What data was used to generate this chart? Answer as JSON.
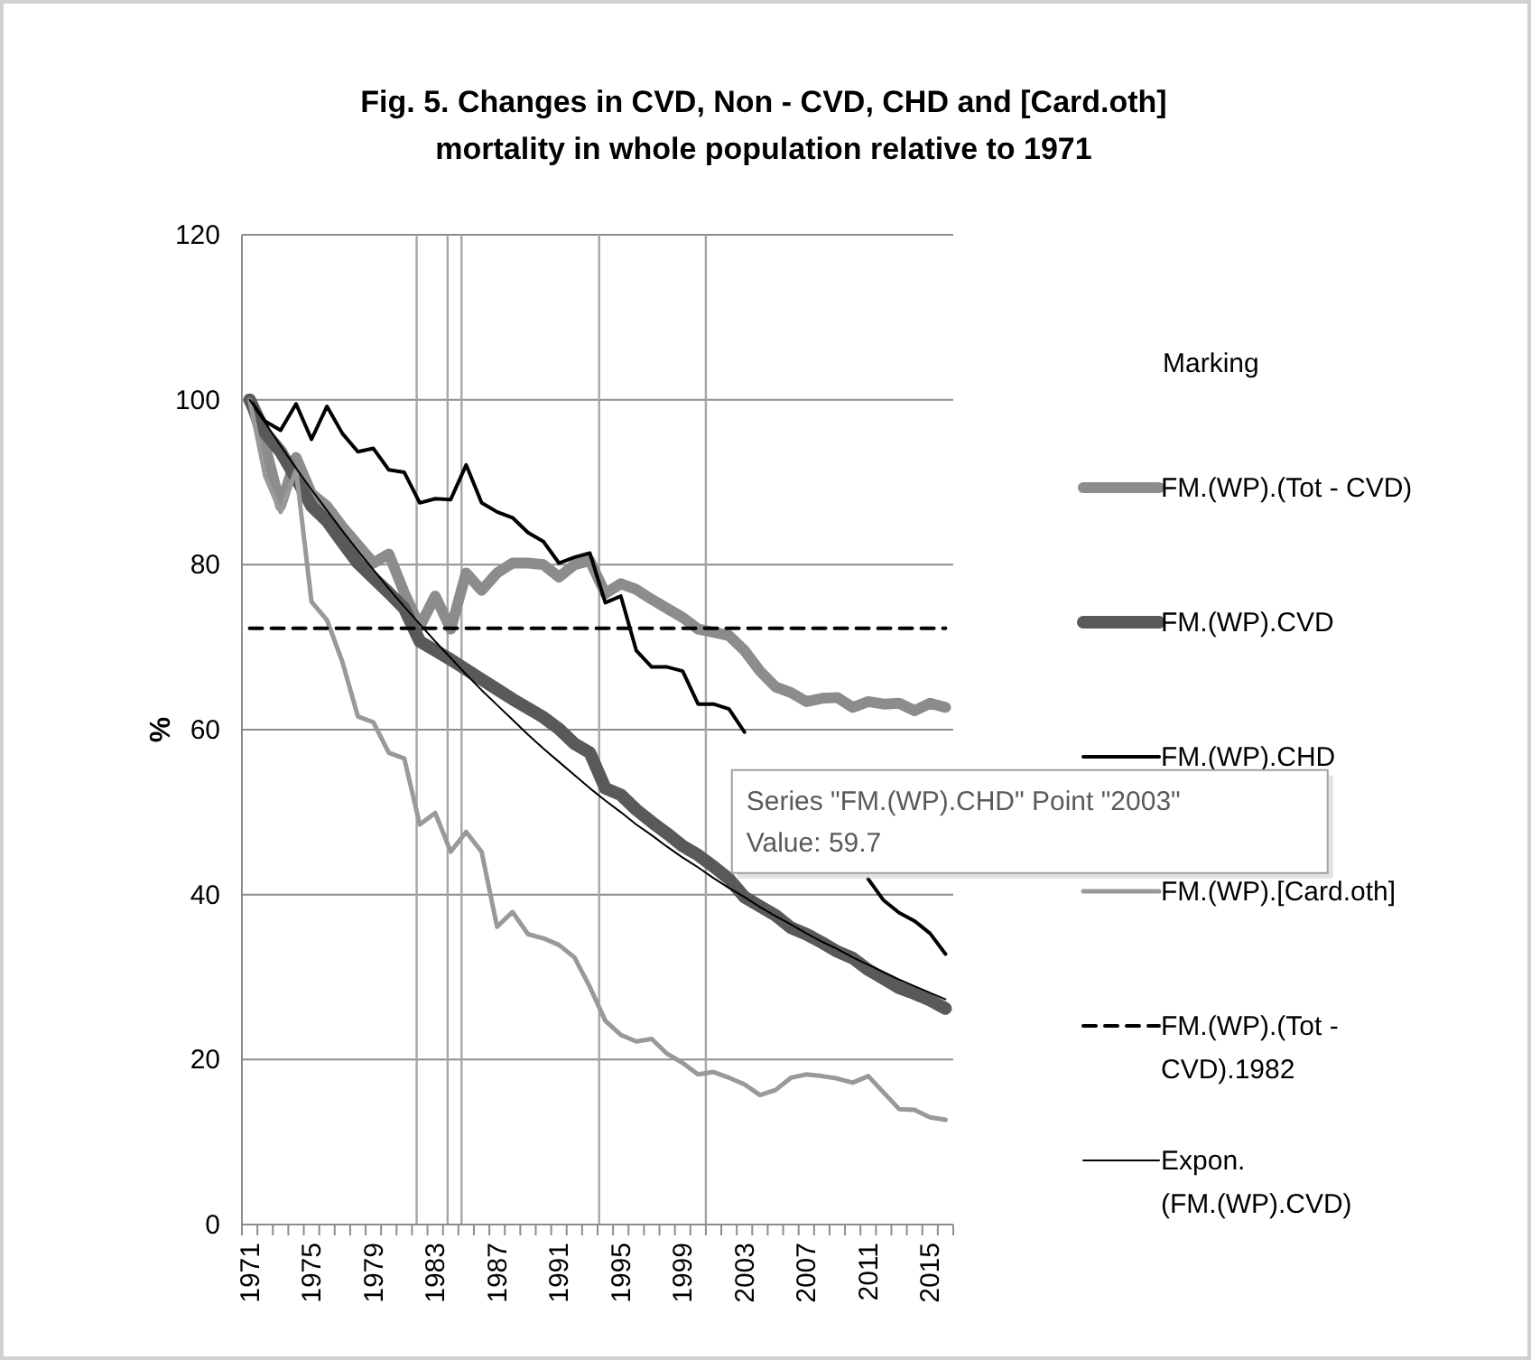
{
  "chart_data": {
    "type": "line",
    "title": "Fig. 5. Changes in CVD, Non - CVD, CHD and [Card.oth] mortality in whole population relative to 1971",
    "ylabel": "%",
    "legend_title": "Marking",
    "legend": "right",
    "grid": "y",
    "x": [
      1971,
      1972,
      1973,
      1974,
      1975,
      1976,
      1977,
      1978,
      1979,
      1980,
      1981,
      1982,
      1983,
      1984,
      1985,
      1986,
      1987,
      1988,
      1989,
      1990,
      1991,
      1992,
      1993,
      1994,
      1995,
      1996,
      1997,
      1998,
      1999,
      2000,
      2001,
      2002,
      2003,
      2004,
      2005,
      2006,
      2007,
      2008,
      2009,
      2010,
      2011,
      2012,
      2013,
      2014,
      2015,
      2016
    ],
    "xlim": [
      1970.5,
      2016.5
    ],
    "xticks": [
      1971,
      1975,
      1979,
      1983,
      1987,
      1991,
      1995,
      1999,
      2003,
      2007,
      2011,
      2015,
      {
        "value": 1970.5,
        "label": null
      },
      {
        "value": 1971.5,
        "label": null
      },
      {
        "value": 1972.5,
        "label": null
      },
      {
        "value": 1973.5,
        "label": null
      },
      {
        "value": 1974.5,
        "label": null
      },
      {
        "value": 1975.5,
        "label": null
      },
      {
        "value": 1976.5,
        "label": null
      },
      {
        "value": 1977.5,
        "label": null
      },
      {
        "value": 1978.5,
        "label": null
      },
      {
        "value": 1979.5,
        "label": null
      },
      {
        "value": 1980.5,
        "label": null
      },
      {
        "value": 1981.5,
        "label": null
      },
      {
        "value": 1982.5,
        "label": null
      },
      {
        "value": 1983.5,
        "label": null
      },
      {
        "value": 1984.5,
        "label": null
      },
      {
        "value": 1985.5,
        "label": null
      },
      {
        "value": 1986.5,
        "label": null
      },
      {
        "value": 1987.5,
        "label": null
      },
      {
        "value": 1988.5,
        "label": null
      },
      {
        "value": 1989.5,
        "label": null
      },
      {
        "value": 1990.5,
        "label": null
      },
      {
        "value": 1991.5,
        "label": null
      },
      {
        "value": 1992.5,
        "label": null
      },
      {
        "value": 1993.5,
        "label": null
      },
      {
        "value": 1994.5,
        "label": null
      },
      {
        "value": 1995.5,
        "label": null
      },
      {
        "value": 1996.5,
        "label": null
      },
      {
        "value": 1997.5,
        "label": null
      },
      {
        "value": 1998.5,
        "label": null
      },
      {
        "value": 1999.5,
        "label": null
      },
      {
        "value": 2000.5,
        "label": null
      },
      {
        "value": 2001.5,
        "label": null
      },
      {
        "value": 2002.5,
        "label": null
      },
      {
        "value": 2003.5,
        "label": null
      },
      {
        "value": 2004.5,
        "label": null
      },
      {
        "value": 2005.5,
        "label": null
      },
      {
        "value": 2006.5,
        "label": null
      },
      {
        "value": 2007.5,
        "label": null
      },
      {
        "value": 2008.5,
        "label": null
      },
      {
        "value": 2009.5,
        "label": null
      },
      {
        "value": 2010.5,
        "label": null
      },
      {
        "value": 2011.5,
        "label": null
      },
      {
        "value": 2012.5,
        "label": null
      },
      {
        "value": 2013.5,
        "label": null
      },
      {
        "value": 2014.5,
        "label": null
      },
      {
        "value": 2015.5,
        "label": null
      },
      {
        "value": 2016.5,
        "label": null
      }
    ],
    "ylim": [
      0,
      120
    ],
    "yticks": [
      0,
      20,
      40,
      60,
      80,
      100,
      120
    ],
    "series": [
      {
        "name": "FM.(WP).(Tot - CVD)",
        "color": "#8c8c8c",
        "values": [
          100,
          94.4,
          87.1,
          93.0,
          88.6,
          87.1,
          84.6,
          82.4,
          80.2,
          81.3,
          76.6,
          72.5,
          76.2,
          72.2,
          79.0,
          76.9,
          79.0,
          80.2,
          80.2,
          80.0,
          78.5,
          80.0,
          80.5,
          76.5,
          77.7,
          77.0,
          75.8,
          74.7,
          73.6,
          72.2,
          71.8,
          71.4,
          69.6,
          67.1,
          65.2,
          64.5,
          63.4,
          63.8,
          63.9,
          62.7,
          63.4,
          63.1,
          63.2,
          62.3,
          63.2,
          62.7
        ]
      },
      {
        "name": "FM.(WP).CVD",
        "color": "#595959",
        "values": [
          100,
          96,
          93.7,
          90.5,
          87.1,
          85.3,
          82.7,
          80.2,
          78.4,
          76.6,
          74.7,
          70.7,
          69.6,
          68.5,
          67.3,
          66.1,
          64.9,
          63.7,
          62.6,
          61.5,
          60.1,
          58.3,
          57.2,
          52.9,
          52.1,
          50.3,
          48.8,
          47.4,
          45.9,
          44.8,
          43.4,
          41.9,
          39.7,
          38.6,
          37.5,
          36.0,
          35.2,
          34.2,
          33.1,
          32.3,
          30.9,
          29.8,
          28.7,
          28.0,
          27.2,
          26.2
        ]
      },
      {
        "name": "FM.(WP).CHD",
        "color": "#000000",
        "values": [
          100,
          97.4,
          96.3,
          99.5,
          95.2,
          99.2,
          95.9,
          93.7,
          94.1,
          91.5,
          91.2,
          87.5,
          88.0,
          87.9,
          92.1,
          87.5,
          86.4,
          85.7,
          83.9,
          82.8,
          80.2,
          80.9,
          81.4,
          75.4,
          76.2,
          69.6,
          67.6,
          67.6,
          67.1,
          63.1,
          63.1,
          62.5,
          59.7,
          null,
          null,
          null,
          null,
          null,
          null,
          null,
          41.9,
          39.3,
          37.8,
          36.8,
          35.3,
          32.8
        ]
      },
      {
        "name": "FM.(WP).[Card.oth]",
        "color": "#999999",
        "values": [
          100,
          90.8,
          86.4,
          91.5,
          75.5,
          73.3,
          68.2,
          61.6,
          60.9,
          57.2,
          56.5,
          48.5,
          49.9,
          45.2,
          47.6,
          45.2,
          36.1,
          37.9,
          35.2,
          34.7,
          33.9,
          32.4,
          28.8,
          24.7,
          23.0,
          22.2,
          22.5,
          20.7,
          19.6,
          18.2,
          18.5,
          17.8,
          17.0,
          15.7,
          16.3,
          17.8,
          18.2,
          18.0,
          17.7,
          17.2,
          18.0,
          16.0,
          14.0,
          13.9,
          13.0,
          12.7
        ]
      },
      {
        "name": "FM.(WP).(Tot - CVD).1982",
        "color": "#000000",
        "line_style": "dashed",
        "values": [
          72.3,
          72.3,
          72.3,
          72.3,
          72.3,
          72.3,
          72.3,
          72.3,
          72.3,
          72.3,
          72.3,
          72.3,
          72.3,
          72.3,
          72.3,
          72.3,
          72.3,
          72.3,
          72.3,
          72.3,
          72.3,
          72.3,
          72.3,
          72.3,
          72.3,
          72.3,
          72.3,
          72.3,
          72.3,
          72.3,
          72.3,
          72.3,
          72.3,
          72.3,
          72.3,
          72.3,
          72.3,
          72.3,
          72.3,
          72.3,
          72.3,
          72.3,
          72.3,
          72.3,
          72.3,
          72.3
        ]
      },
      {
        "name": "Expon. (FM.(WP).CVD)",
        "color": "#000000",
        "values": [
          100,
          97.2,
          94.4,
          91.7,
          89.1,
          86.6,
          84.1,
          81.7,
          79.4,
          77.1,
          74.9,
          72.8,
          70.7,
          68.7,
          66.7,
          64.8,
          63.0,
          61.2,
          59.4,
          57.7,
          56.1,
          54.5,
          52.9,
          51.4,
          50.0,
          48.5,
          47.2,
          45.8,
          44.5,
          43.3,
          42.0,
          40.8,
          39.7,
          38.5,
          37.4,
          36.4,
          35.3,
          34.3,
          33.4,
          32.4,
          31.5,
          30.6,
          29.7,
          28.9,
          28.1,
          27.3
        ]
      }
    ],
    "ref_lines": [
      {
        "axis": "x",
        "value": 1981.8,
        "color": "#a6a6a6"
      },
      {
        "axis": "x",
        "value": 1983.8,
        "color": "#a6a6a6"
      },
      {
        "axis": "x",
        "value": 1984.7,
        "color": "#a6a6a6"
      },
      {
        "axis": "x",
        "value": 1993.6,
        "color": "#a6a6a6"
      },
      {
        "axis": "x",
        "value": 2000.5,
        "color": "#a6a6a6"
      }
    ],
    "annotations": [
      {
        "text": "Series \"FM.(WP).CHD\" Point \"2003\"\nValue: 59.7",
        "x": 2003,
        "y": 59.7
      }
    ]
  }
}
